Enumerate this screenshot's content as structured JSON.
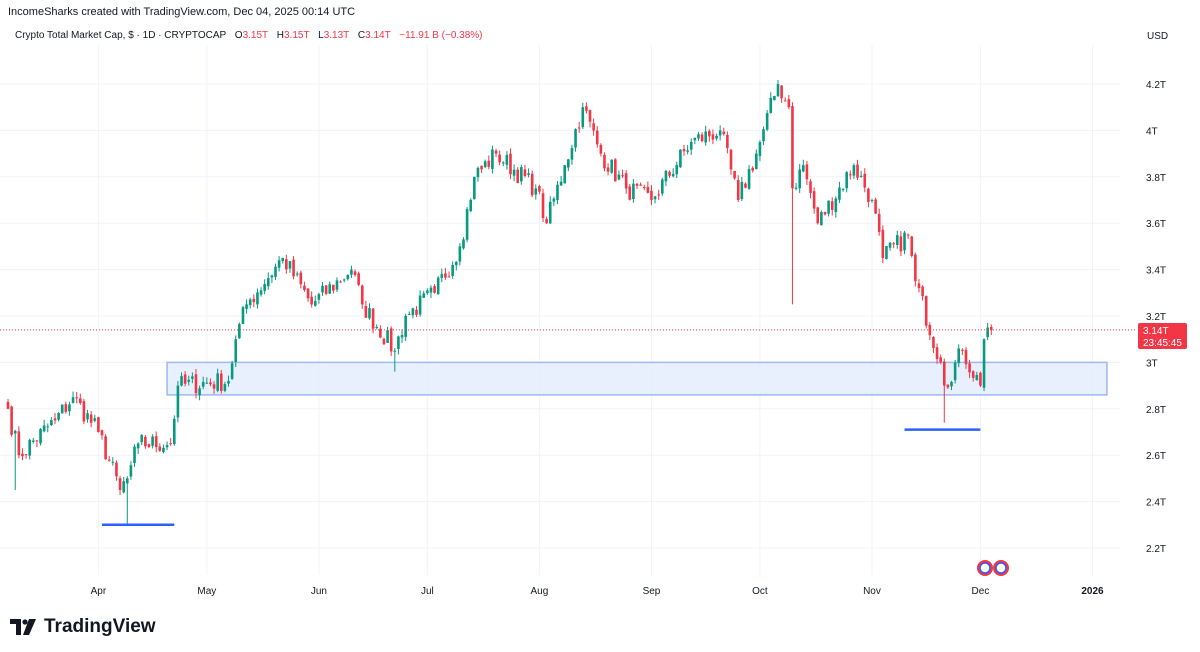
{
  "header": {
    "credit": "IncomeSharks created with TradingView.com, Dec 04, 2025 00:14 UTC",
    "symbol": "Crypto Total Market Cap, $ · 1D · CRYPTOCAP",
    "open_label": "O",
    "open": "3.15T",
    "high_label": "H",
    "high": "3.15T",
    "low_label": "L",
    "low": "3.13T",
    "close_label": "C",
    "close": "3.14T",
    "change": "−11.91 B (−0.38%)",
    "currency": "USD"
  },
  "price_tag": {
    "price": "3.14T",
    "countdown": "23:45:45"
  },
  "brand": "TradingView",
  "colors": {
    "up": "#089981",
    "down": "#f23645",
    "zone_fill": "#e3ecfd",
    "zone_border": "#9db8f2",
    "annotation_line": "#2962ff"
  },
  "chart_data": {
    "type": "candlestick",
    "title": "Crypto Total Market Cap, $ · 1D · CRYPTOCAP",
    "ylabel": "USD (trillions)",
    "ylim": [
      2.05,
      4.4
    ],
    "y_ticks": [
      {
        "value": 4.2,
        "label": "4.2T"
      },
      {
        "value": 4.0,
        "label": "4T"
      },
      {
        "value": 3.8,
        "label": "3.8T"
      },
      {
        "value": 3.6,
        "label": "3.6T"
      },
      {
        "value": 3.4,
        "label": "3.4T"
      },
      {
        "value": 3.2,
        "label": "3.2T"
      },
      {
        "value": 3.0,
        "label": "3T"
      },
      {
        "value": 2.8,
        "label": "2.8T"
      },
      {
        "value": 2.6,
        "label": "2.6T"
      },
      {
        "value": 2.4,
        "label": "2.4T"
      },
      {
        "value": 2.2,
        "label": "2.2T"
      }
    ],
    "x_start": "2025-03-07",
    "x_ticks": [
      {
        "day": 25,
        "label": "Apr"
      },
      {
        "day": 55,
        "label": "May"
      },
      {
        "day": 86,
        "label": "Jun"
      },
      {
        "day": 116,
        "label": "Jul"
      },
      {
        "day": 147,
        "label": "Aug"
      },
      {
        "day": 178,
        "label": "Sep"
      },
      {
        "day": 208,
        "label": "Oct"
      },
      {
        "day": 239,
        "label": "Nov"
      },
      {
        "day": 269,
        "label": "Dec"
      },
      {
        "day": 300,
        "label": "2026"
      }
    ],
    "close_waypoints": [
      [
        0,
        2.8
      ],
      [
        3,
        2.6
      ],
      [
        13,
        2.75
      ],
      [
        18,
        2.85
      ],
      [
        25,
        2.7
      ],
      [
        31,
        2.45
      ],
      [
        33,
        2.5
      ],
      [
        36,
        2.65
      ],
      [
        45,
        2.65
      ],
      [
        47,
        2.9
      ],
      [
        61,
        2.92
      ],
      [
        63,
        3.1
      ],
      [
        66,
        3.25
      ],
      [
        76,
        3.45
      ],
      [
        84,
        3.25
      ],
      [
        95,
        3.4
      ],
      [
        98,
        3.25
      ],
      [
        107,
        3.05
      ],
      [
        110,
        3.2
      ],
      [
        118,
        3.3
      ],
      [
        125,
        3.5
      ],
      [
        129,
        3.8
      ],
      [
        135,
        3.9
      ],
      [
        146,
        3.75
      ],
      [
        149,
        3.6
      ],
      [
        154,
        3.85
      ],
      [
        159,
        4.1
      ],
      [
        164,
        3.9
      ],
      [
        171,
        3.75
      ],
      [
        178,
        3.7
      ],
      [
        189,
        3.95
      ],
      [
        197,
        4.0
      ],
      [
        202,
        3.7
      ],
      [
        207,
        3.9
      ],
      [
        213,
        4.2
      ],
      [
        216,
        4.1
      ],
      [
        217,
        3.75
      ],
      [
        220,
        3.85
      ],
      [
        224,
        3.6
      ],
      [
        234,
        3.85
      ],
      [
        239,
        3.7
      ],
      [
        242,
        3.45
      ],
      [
        249,
        3.55
      ],
      [
        251,
        3.35
      ],
      [
        258,
        3.0
      ],
      [
        259,
        2.9
      ],
      [
        264,
        3.05
      ],
      [
        269,
        2.9
      ],
      [
        270,
        3.1
      ],
      [
        271,
        3.15
      ],
      [
        272,
        3.14
      ]
    ],
    "notable_lows": [
      [
        2,
        2.45
      ],
      [
        33,
        2.3
      ],
      [
        107,
        2.96
      ],
      [
        217,
        3.25
      ],
      [
        259,
        2.74
      ]
    ],
    "last_price": 3.14,
    "annotations": {
      "support_zone": {
        "from_day": 44,
        "to_day": 304,
        "low": 2.86,
        "high": 3.0
      },
      "low_lines": [
        {
          "from_day": 26,
          "to_day": 46,
          "value": 2.3
        },
        {
          "from_day": 248,
          "to_day": 269,
          "value": 2.71
        }
      ]
    }
  }
}
